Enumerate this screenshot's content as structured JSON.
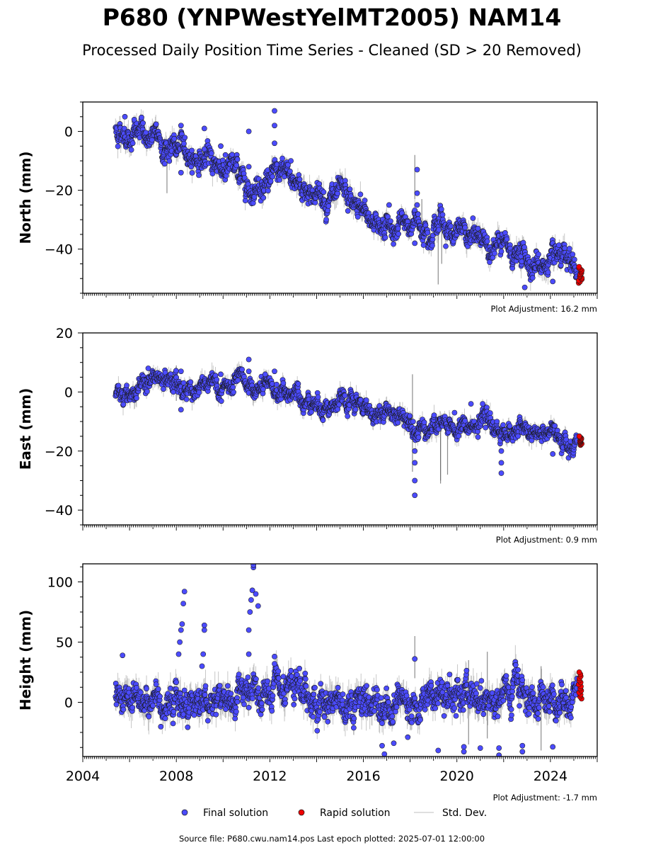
{
  "figure": {
    "title": "P680 (YNPWestYelMT2005) NAM14",
    "subtitle": "Processed Daily Position Time Series - Cleaned (SD > 20 Removed)",
    "footer": "Source file: P680.cwu.nam14.pos  Last epoch plotted: 2025-07-01 12:00:00"
  },
  "legend": {
    "final": "Final solution",
    "rapid": "Rapid solution",
    "std": "Std. Dev."
  },
  "colors": {
    "final": "#4b4bff",
    "rapid": "#ee0000",
    "std": "#9a9a9a",
    "marker_edge": "#1a1a1a"
  },
  "chart_data": [
    {
      "type": "scatter",
      "ylabel": "North (mm)",
      "adjustment": "Plot Adjustment: 16.2 mm",
      "xlim": [
        2004,
        2026
      ],
      "ylim": [
        -55,
        10
      ],
      "yticks": [
        0,
        -20,
        -40
      ],
      "xticks": [],
      "trend": [
        [
          2005.4,
          0.5
        ],
        [
          2006.5,
          -1
        ],
        [
          2008,
          -6
        ],
        [
          2009,
          -9
        ],
        [
          2010.5,
          -13
        ],
        [
          2011.2,
          -18
        ],
        [
          2012,
          -15
        ],
        [
          2013,
          -17
        ],
        [
          2014,
          -21
        ],
        [
          2015,
          -24
        ],
        [
          2016,
          -28
        ],
        [
          2017.3,
          -33
        ],
        [
          2018.5,
          -31
        ],
        [
          2019.3,
          -30
        ],
        [
          2020,
          -35
        ],
        [
          2021.5,
          -38
        ],
        [
          2022.5,
          -42
        ],
        [
          2023.5,
          -45
        ],
        [
          2025.2,
          -48
        ]
      ],
      "spikes": [
        [
          2005.8,
          5
        ],
        [
          2006.2,
          4
        ],
        [
          2007.5,
          -11
        ],
        [
          2008.2,
          2
        ],
        [
          2008.2,
          -14
        ],
        [
          2009.2,
          1
        ],
        [
          2009.2,
          -6
        ],
        [
          2009.9,
          -5
        ],
        [
          2010.1,
          -8
        ],
        [
          2011.1,
          0
        ],
        [
          2011.1,
          -12
        ],
        [
          2012.2,
          7
        ],
        [
          2012.2,
          2
        ],
        [
          2012.2,
          -4
        ],
        [
          2012.9,
          -10
        ],
        [
          2017.1,
          -25
        ],
        [
          2018.3,
          -13
        ],
        [
          2018.3,
          -21
        ],
        [
          2018.3,
          -25
        ],
        [
          2018.2,
          -38
        ],
        [
          2020.9,
          -33
        ],
        [
          2022.9,
          -53
        ],
        [
          2024.1,
          -51
        ]
      ],
      "rapid": {
        "x": [
          2025.2,
          2025.35
        ],
        "y": [
          -51.5,
          -46
        ]
      },
      "std_dev_spikes": [
        [
          2007.6,
          -21,
          -10
        ],
        [
          2018.5,
          -38,
          -23
        ],
        [
          2019.2,
          -52,
          -24
        ],
        [
          2019.35,
          -45,
          -27
        ],
        [
          2018.2,
          -23,
          -8
        ]
      ],
      "noise": 2.6
    },
    {
      "type": "scatter",
      "ylabel": "East (mm)",
      "adjustment": "Plot Adjustment: 0.9 mm",
      "xlim": [
        2004,
        2026
      ],
      "ylim": [
        -45,
        20
      ],
      "yticks": [
        20,
        0,
        -20,
        -40
      ],
      "xticks": [],
      "trend": [
        [
          2005.4,
          0
        ],
        [
          2006.2,
          1
        ],
        [
          2007,
          4
        ],
        [
          2008,
          2
        ],
        [
          2009,
          1
        ],
        [
          2010,
          1
        ],
        [
          2011,
          1
        ],
        [
          2012,
          0
        ],
        [
          2013,
          -1
        ],
        [
          2014,
          -3
        ],
        [
          2015,
          -5
        ],
        [
          2016,
          -6
        ],
        [
          2017,
          -7
        ],
        [
          2018,
          -9
        ],
        [
          2019,
          -11
        ],
        [
          2020,
          -13
        ],
        [
          2021,
          -11
        ],
        [
          2022,
          -13
        ],
        [
          2023,
          -14
        ],
        [
          2024,
          -15
        ],
        [
          2025.2,
          -16
        ]
      ],
      "spikes": [
        [
          2006.8,
          8
        ],
        [
          2008.2,
          7
        ],
        [
          2008.2,
          -6
        ],
        [
          2009.9,
          6
        ],
        [
          2011.1,
          11
        ],
        [
          2011.1,
          7
        ],
        [
          2011.8,
          6
        ],
        [
          2012.2,
          7
        ],
        [
          2018.2,
          -20
        ],
        [
          2018.2,
          -24
        ],
        [
          2018.2,
          -30
        ],
        [
          2018.2,
          -35
        ],
        [
          2020.6,
          -4
        ],
        [
          2021.1,
          -4
        ],
        [
          2021.9,
          -20
        ],
        [
          2021.9,
          -24
        ],
        [
          2021.9,
          -27.5
        ],
        [
          2019.9,
          -7
        ],
        [
          2024.1,
          -21
        ]
      ],
      "rapid": {
        "x": [
          2025.2,
          2025.35
        ],
        "y": [
          -18,
          -15
        ]
      },
      "std_dev_spikes": [
        [
          2018.1,
          -27,
          6
        ],
        [
          2019.3,
          -30,
          -8
        ],
        [
          2019.3,
          -31,
          -11
        ],
        [
          2019.6,
          -28,
          -12
        ],
        [
          2008,
          -3,
          9
        ]
      ],
      "noise": 2.1
    },
    {
      "type": "scatter",
      "ylabel": "Height (mm)",
      "adjustment": "Plot Adjustment: -1.7 mm",
      "xlim": [
        2004,
        2026
      ],
      "ylim": [
        -45,
        115
      ],
      "yticks": [
        100,
        50,
        0
      ],
      "xticks": [
        2004,
        2008,
        2012,
        2016,
        2020,
        2024
      ],
      "trend": [
        [
          2005.4,
          5
        ],
        [
          2006,
          4
        ],
        [
          2007,
          5
        ],
        [
          2008,
          3
        ],
        [
          2009,
          2
        ],
        [
          2010,
          3
        ],
        [
          2011,
          2
        ],
        [
          2012,
          2
        ],
        [
          2013,
          3
        ],
        [
          2014,
          3
        ],
        [
          2015,
          4
        ],
        [
          2016,
          2
        ],
        [
          2017,
          1
        ],
        [
          2018,
          3
        ],
        [
          2019,
          4
        ],
        [
          2020,
          3
        ],
        [
          2021,
          4
        ],
        [
          2022,
          5
        ],
        [
          2023,
          5
        ],
        [
          2024,
          6
        ],
        [
          2025.2,
          8
        ]
      ],
      "spikes": [
        [
          2005.7,
          39
        ],
        [
          2008.1,
          40
        ],
        [
          2008.15,
          50
        ],
        [
          2008.2,
          60
        ],
        [
          2008.25,
          65
        ],
        [
          2008.3,
          82
        ],
        [
          2008.35,
          92
        ],
        [
          2009.1,
          30
        ],
        [
          2009.15,
          40
        ],
        [
          2009.2,
          60
        ],
        [
          2009.2,
          64
        ],
        [
          2011.1,
          40
        ],
        [
          2011.1,
          60
        ],
        [
          2011.15,
          75
        ],
        [
          2011.2,
          85
        ],
        [
          2011.25,
          93
        ],
        [
          2011.3,
          112
        ],
        [
          2011.3,
          114
        ],
        [
          2011.4,
          90
        ],
        [
          2011.5,
          80
        ],
        [
          2012.2,
          38
        ],
        [
          2012.2,
          32
        ],
        [
          2016.8,
          -36
        ],
        [
          2016.9,
          -43
        ],
        [
          2017.3,
          -34
        ],
        [
          2018.2,
          36
        ],
        [
          2017.9,
          -29
        ],
        [
          2019.2,
          -40
        ],
        [
          2020.3,
          -37
        ],
        [
          2020.3,
          -41
        ],
        [
          2021.0,
          -38
        ],
        [
          2021.8,
          -38
        ],
        [
          2021.8,
          -44
        ],
        [
          2022.8,
          -36
        ],
        [
          2022.8,
          -41
        ],
        [
          2024.1,
          -37
        ]
      ],
      "rapid": {
        "x": [
          2025.2,
          2025.35
        ],
        "y": [
          3,
          25
        ]
      },
      "std_dev_spikes": [
        [
          2018.2,
          20,
          55
        ],
        [
          2021.3,
          -30,
          42
        ],
        [
          2020.5,
          -35,
          35
        ],
        [
          2023.6,
          -40,
          30
        ]
      ],
      "noise": 9
    }
  ]
}
